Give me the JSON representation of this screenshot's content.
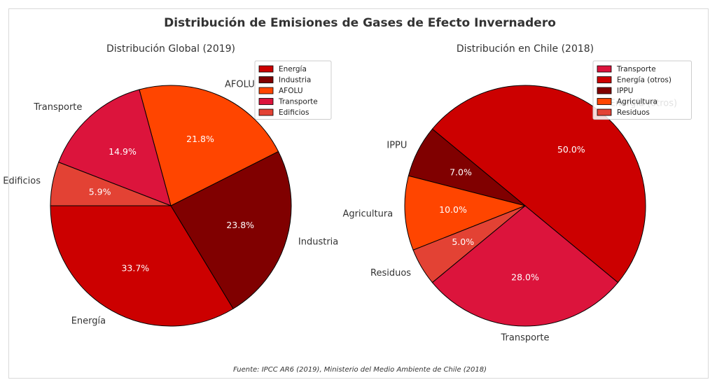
{
  "title": "Distribución de Emisiones de Gases de Efecto Invernadero",
  "source": "Fuente: IPCC AR6 (2019), Ministerio del Medio Ambiente de Chile (2018)",
  "chart_data": [
    {
      "type": "pie",
      "title": "Distribución Global (2019)",
      "legend_position": "top-right",
      "slices": [
        {
          "label": "Energía",
          "value": 33.7,
          "display": "33.7%",
          "color": "#cc0000"
        },
        {
          "label": "Industria",
          "value": 23.8,
          "display": "23.8%",
          "color": "#800000"
        },
        {
          "label": "AFOLU",
          "value": 21.8,
          "display": "21.8%",
          "color": "#ff4500"
        },
        {
          "label": "Transporte",
          "value": 14.9,
          "display": "14.9%",
          "color": "#dc143c"
        },
        {
          "label": "Edificios",
          "value": 5.9,
          "display": "5.9%",
          "color": "#e34234"
        }
      ]
    },
    {
      "type": "pie",
      "title": "Distribución en Chile (2018)",
      "legend_position": "top-right",
      "slices": [
        {
          "label": "Transporte",
          "value": 28.0,
          "display": "28.0%",
          "color": "#dc143c"
        },
        {
          "label": "Energía (otros)",
          "value": 50.0,
          "display": "50.0%",
          "color": "#cc0000"
        },
        {
          "label": "IPPU",
          "value": 7.0,
          "display": "7.0%",
          "color": "#800000"
        },
        {
          "label": "Agricultura",
          "value": 10.0,
          "display": "10.0%",
          "color": "#ff4500"
        },
        {
          "label": "Residuos",
          "value": 5.0,
          "display": "5.0%",
          "color": "#e34234"
        }
      ]
    }
  ]
}
